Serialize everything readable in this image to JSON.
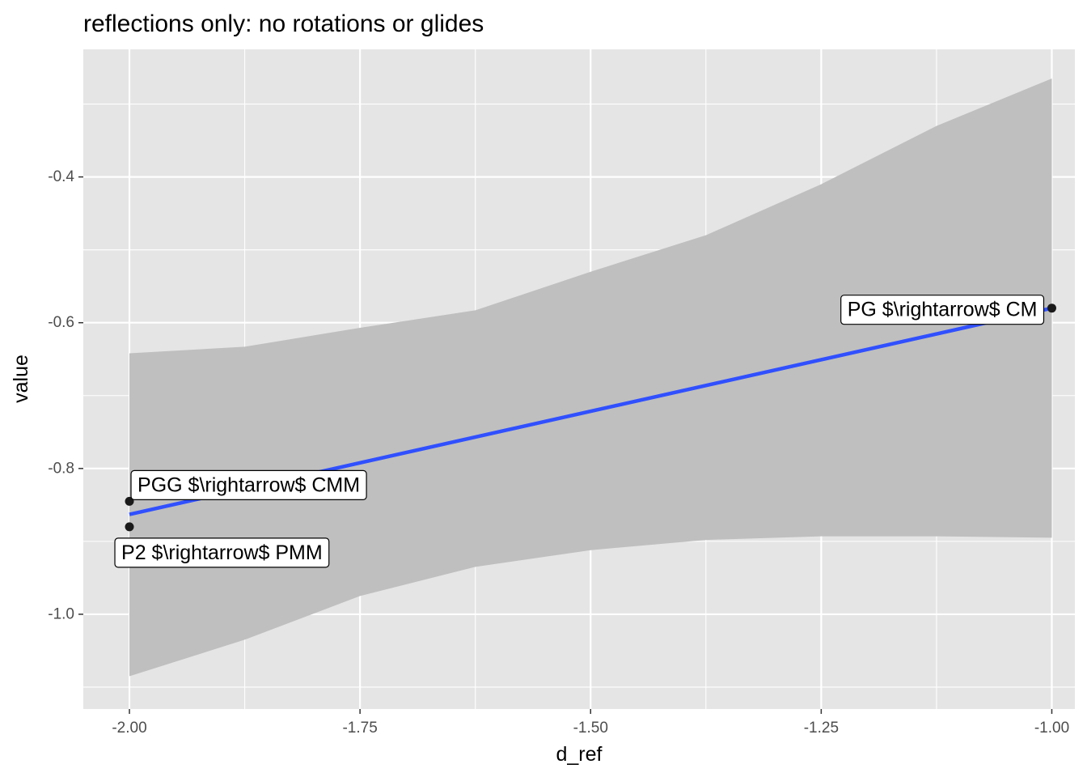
{
  "chart_data": {
    "type": "scatter",
    "title": "reflections only: no rotations or glides",
    "xlabel": "d_ref",
    "ylabel": "value",
    "xlim": [
      -2.05,
      -0.975
    ],
    "ylim": [
      -1.13,
      -0.225
    ],
    "x_ticks": [
      -2.0,
      -1.75,
      -1.5,
      -1.25,
      -1.0
    ],
    "x_tick_labels": [
      "-2.00",
      "-1.75",
      "-1.50",
      "-1.25",
      "-1.00"
    ],
    "x_minor_ticks": [
      -1.875,
      -1.625,
      -1.375,
      -1.125
    ],
    "y_ticks": [
      -1.0,
      -0.8,
      -0.6,
      -0.4
    ],
    "y_tick_labels": [
      "-1.0",
      "-0.8",
      "-0.6",
      "-0.4"
    ],
    "y_minor_ticks": [
      -1.1,
      -0.9,
      -0.7,
      -0.5,
      -0.3
    ],
    "grid": true,
    "points": [
      {
        "x": -2.0,
        "y": -0.845,
        "label": "PGG $\\rightarrow$ CMM"
      },
      {
        "x": -2.0,
        "y": -0.88,
        "label": "P2 $\\rightarrow$ PMM"
      },
      {
        "x": -1.0,
        "y": -0.58,
        "label": "PG $\\rightarrow$ CM"
      }
    ],
    "fit_line": {
      "x": [
        -2.0,
        -1.0
      ],
      "y": [
        -0.863,
        -0.58
      ]
    },
    "confidence_band": {
      "x": [
        -2.0,
        -1.875,
        -1.75,
        -1.625,
        -1.5,
        -1.375,
        -1.25,
        -1.125,
        -1.0
      ],
      "upper": [
        -0.642,
        -0.633,
        -0.607,
        -0.583,
        -0.53,
        -0.48,
        -0.41,
        -0.33,
        -0.265
      ],
      "lower": [
        -1.085,
        -1.035,
        -0.975,
        -0.935,
        -0.912,
        -0.898,
        -0.893,
        -0.893,
        -0.895
      ]
    },
    "colors": {
      "panel": "#e5e5e5",
      "grid": "#ffffff",
      "band": "#bfbfbf",
      "line": "#3050ff",
      "point": "#1a1a1a"
    }
  }
}
